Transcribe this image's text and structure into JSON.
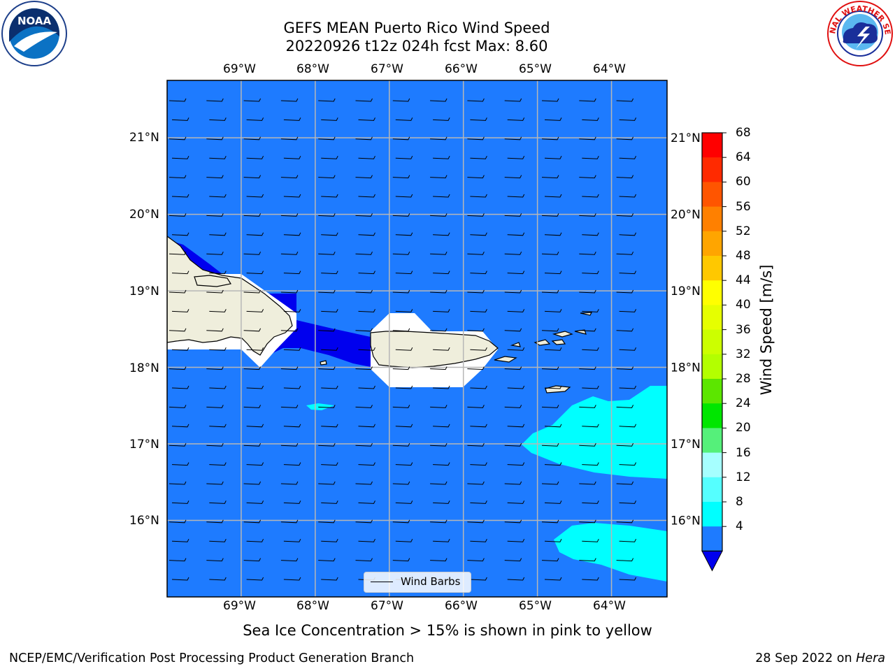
{
  "title": {
    "line1": "GEFS MEAN Puerto Rico Wind Speed",
    "line2": "20220926 t12z 024h fcst   Max: 8.60"
  },
  "logos": {
    "left": {
      "text": "NOAA",
      "icon": "noaa-logo-icon"
    },
    "right": {
      "text": "NATIONAL WEATHER SERVICE",
      "icon": "nws-logo-icon"
    }
  },
  "map": {
    "lon_ticks": [
      "69°W",
      "68°W",
      "67°W",
      "66°W",
      "65°W",
      "64°W"
    ],
    "lat_ticks": [
      "21°N",
      "20°N",
      "19°N",
      "18°N",
      "17°N",
      "16°N"
    ],
    "lon_values": [
      -69,
      -68,
      -67,
      -66,
      -65,
      -64
    ],
    "lat_values": [
      21,
      20,
      19,
      18,
      17,
      16
    ],
    "extent": {
      "lon_min": -70.0,
      "lon_max": -63.25,
      "lat_min": 15.0,
      "lat_max": 21.75
    },
    "legend_label": "Wind Barbs",
    "ocean_color": "#1e7bff",
    "land_color": "#efeedc",
    "low_wind_color": "#0000ee",
    "mid_wind_color": "#00ffff"
  },
  "colorbar": {
    "label": "Wind Speed [m/s]",
    "ticks": [
      "68",
      "64",
      "60",
      "56",
      "52",
      "48",
      "44",
      "40",
      "36",
      "32",
      "28",
      "24",
      "20",
      "16",
      "12",
      "8",
      "4"
    ],
    "colors": [
      "#ff0000",
      "#ff2a00",
      "#ff5500",
      "#ff8000",
      "#ffa500",
      "#ffc800",
      "#ffff00",
      "#e6ff00",
      "#ccff00",
      "#b3ff00",
      "#5ce600",
      "#00e600",
      "#55f07a",
      "#a6ffff",
      "#55ffff",
      "#00ffff",
      "#1e7bff"
    ],
    "under_color": "#0000ee"
  },
  "footer": {
    "note": "Sea Ice Concentration > 15% is shown in pink to yellow",
    "left": "NCEP/EMC/Verification Post Processing Product Generation Branch",
    "right_date": "28 Sep 2022 on",
    "right_host": "Hera"
  }
}
